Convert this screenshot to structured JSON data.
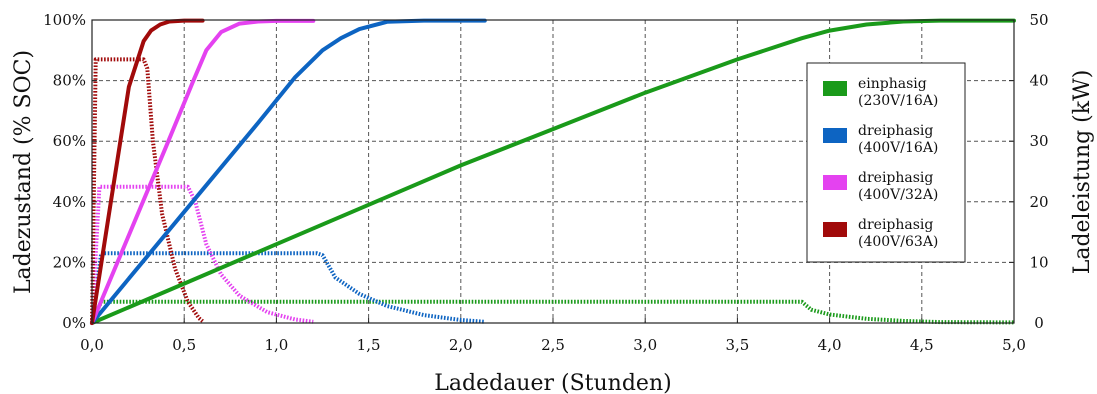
{
  "chart_data": {
    "type": "line",
    "xlabel": "Ladedauer (Stunden)",
    "ylabel_left": "Ladezustand (% SOC)",
    "ylabel_right": "Ladeleistung (kW)",
    "xlim": [
      0,
      5
    ],
    "ylim_left": [
      0,
      100
    ],
    "ylim_right": [
      0,
      50
    ],
    "x_ticks": [
      "0,0",
      "0,5",
      "1,0",
      "1,5",
      "2,0",
      "2,5",
      "3,0",
      "3,5",
      "4,0",
      "4,5",
      "5,0"
    ],
    "y_left_ticks": [
      "0%",
      "20%",
      "40%",
      "60%",
      "80%",
      "100%"
    ],
    "y_right_ticks": [
      "0",
      "10",
      "20",
      "30",
      "40",
      "50"
    ],
    "grid": true,
    "legend_position": "center-right",
    "legend": [
      {
        "line1": "einphasig",
        "line2": "(230V/16A)",
        "color": "#1a9a1a"
      },
      {
        "line1": "dreiphasig",
        "line2": "(400V/16A)",
        "color": "#0d64c2"
      },
      {
        "line1": "dreiphasig",
        "line2": "(400V/32A)",
        "color": "#e442f0"
      },
      {
        "line1": "dreiphasig",
        "line2": "(400V/63A)",
        "color": "#a10a0a"
      }
    ],
    "series": [
      {
        "color": "#1a9a1a",
        "soc": {
          "x": [
            0,
            0.5,
            1.0,
            1.5,
            2.0,
            2.5,
            3.0,
            3.5,
            3.85,
            4.0,
            4.2,
            4.4,
            4.6,
            5.0
          ],
          "y": [
            0,
            13,
            26,
            39,
            52,
            64,
            76,
            87,
            94,
            96.5,
            98.5,
            99.5,
            99.8,
            99.8
          ]
        },
        "power_kw": {
          "x": [
            0,
            0.02,
            0.05,
            3.85,
            3.9,
            4.0,
            4.2,
            4.4,
            4.6,
            5.0
          ],
          "y": [
            0,
            1.5,
            3.5,
            3.5,
            2.2,
            1.4,
            0.7,
            0.35,
            0.15,
            0.1
          ]
        }
      },
      {
        "color": "#0d64c2",
        "soc": {
          "x": [
            0,
            0.3,
            0.6,
            0.9,
            1.1,
            1.25,
            1.35,
            1.45,
            1.6,
            1.8,
            2.13
          ],
          "y": [
            0,
            22,
            44,
            66,
            81,
            90,
            94,
            97,
            99.4,
            99.8,
            99.8
          ]
        },
        "power_kw": {
          "x": [
            0,
            0.05,
            1.22,
            1.25,
            1.32,
            1.45,
            1.6,
            1.8,
            2.0,
            2.13
          ],
          "y": [
            0,
            11.5,
            11.5,
            11.2,
            7.5,
            4.8,
            2.8,
            1.3,
            0.5,
            0.2
          ]
        }
      },
      {
        "color": "#e442f0",
        "soc": {
          "x": [
            0,
            0.2,
            0.4,
            0.55,
            0.62,
            0.7,
            0.8,
            0.9,
            1.0,
            1.2
          ],
          "y": [
            0,
            29,
            58,
            80,
            90,
            96,
            98.8,
            99.5,
            99.7,
            99.7
          ]
        },
        "power_kw": {
          "x": [
            0,
            0.04,
            0.52,
            0.56,
            0.62,
            0.7,
            0.8,
            0.95,
            1.1,
            1.2
          ],
          "y": [
            0,
            22.5,
            22.5,
            20,
            13,
            8,
            4.5,
            1.8,
            0.6,
            0.2
          ]
        }
      },
      {
        "color": "#a10a0a",
        "soc": {
          "x": [
            0,
            0.1,
            0.2,
            0.28,
            0.32,
            0.37,
            0.42,
            0.5,
            0.6
          ],
          "y": [
            0,
            39,
            78,
            93,
            96.5,
            98.5,
            99.5,
            99.8,
            99.8
          ]
        },
        "power_kw": {
          "x": [
            0,
            0.02,
            0.28,
            0.3,
            0.33,
            0.38,
            0.45,
            0.52,
            0.58,
            0.6
          ],
          "y": [
            0,
            43.5,
            43.5,
            42,
            30,
            18,
            9,
            3.5,
            0.8,
            0.3
          ]
        }
      }
    ]
  }
}
